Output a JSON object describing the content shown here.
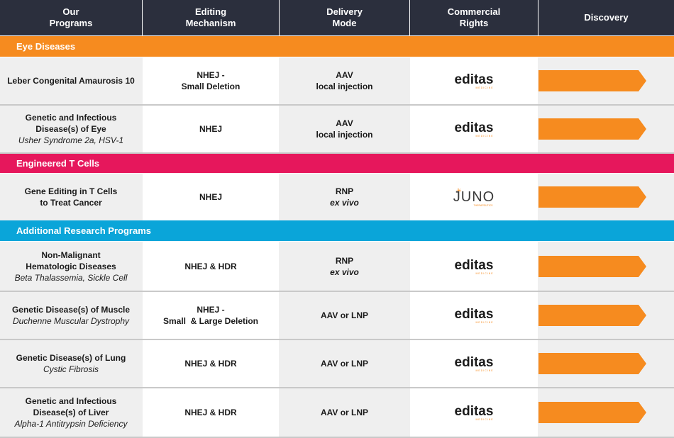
{
  "headers": {
    "programs": "Our\nPrograms",
    "mechanism": "Editing\nMechanism",
    "delivery": "Delivery\nMode",
    "rights": "Commercial\nRights",
    "discovery": "Discovery"
  },
  "colors": {
    "header_bg": "#2b2f3d",
    "eye": "#f68b1f",
    "tcells": "#e6175c",
    "additional": "#0aa5d9",
    "arrow": "#f68b1f",
    "row_bg": "#efefef"
  },
  "sections": {
    "eye": "Eye Diseases",
    "tcells": "Engineered T Cells",
    "additional": "Additional Research Programs"
  },
  "rows": [
    {
      "program": "Leber Congenital Amaurosis 10",
      "sub": "",
      "mechanism": "NHEJ -\nSmall Deletion",
      "delivery": "AAV",
      "delivery2": "local injection",
      "rights": "editas",
      "rights_tag": "MEDICINE",
      "progress": 0.8
    },
    {
      "program": "Genetic and Infectious\nDisease(s) of Eye",
      "sub": "Usher Syndrome 2a, HSV-1",
      "mechanism": "NHEJ",
      "delivery": "AAV",
      "delivery2": "local injection",
      "rights": "editas",
      "rights_tag": "MEDICINE",
      "progress": 0.8
    },
    {
      "program": "Gene Editing in T Cells\nto Treat Cancer",
      "sub": "",
      "mechanism": "NHEJ",
      "delivery": "RNP",
      "delivery2": "ex vivo",
      "rights": "JUNO",
      "rights_tag": "THERAPEUTICS",
      "progress": 0.8
    },
    {
      "program": "Non-Malignant\nHematologic Diseases",
      "sub": "Beta Thalassemia, Sickle Cell",
      "mechanism": "NHEJ & HDR",
      "delivery": "RNP",
      "delivery2": "ex vivo",
      "rights": "editas",
      "rights_tag": "MEDICINE",
      "progress": 0.8
    },
    {
      "program": "Genetic Disease(s) of Muscle",
      "sub": "Duchenne Muscular Dystrophy",
      "mechanism": "NHEJ -\nSmall  & Large Deletion",
      "delivery": "AAV or LNP",
      "delivery2": "",
      "rights": "editas",
      "rights_tag": "MEDICINE",
      "progress": 0.8
    },
    {
      "program": "Genetic Disease(s) of Lung",
      "sub": "Cystic Fibrosis",
      "mechanism": "NHEJ & HDR",
      "delivery": "AAV or LNP",
      "delivery2": "",
      "rights": "editas",
      "rights_tag": "MEDICINE",
      "progress": 0.8
    },
    {
      "program": "Genetic and Infectious\nDisease(s) of Liver",
      "sub": "Alpha-1 Antitrypsin Deficiency",
      "mechanism": "NHEJ & HDR",
      "delivery": "AAV or LNP",
      "delivery2": "",
      "rights": "editas",
      "rights_tag": "MEDICINE",
      "progress": 0.8
    }
  ]
}
